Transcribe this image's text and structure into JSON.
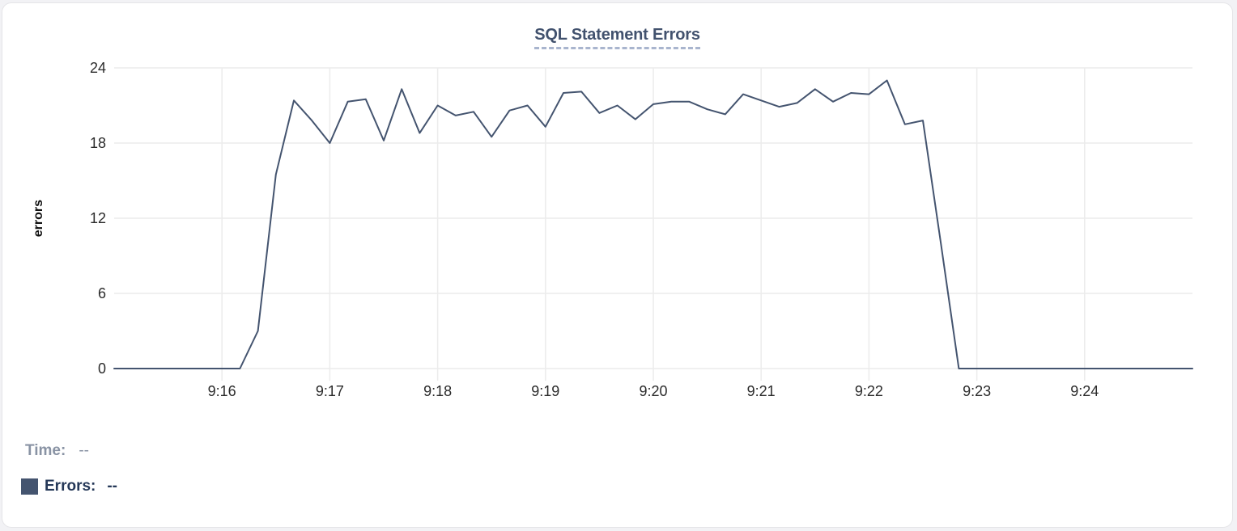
{
  "card": {
    "background": "#ffffff",
    "border_color": "#e5e5e8"
  },
  "legend": {
    "time_label": "Time:",
    "time_value": "--",
    "errors_label": "Errors:",
    "errors_value": "--",
    "swatch_color": "#44546F",
    "time_color": "#8993A4",
    "errors_color": "#253858"
  },
  "icons": {
    "errors_series_swatch": "square-swatch-icon"
  },
  "chart_data": {
    "type": "line",
    "title": "SQL Statement Errors",
    "xlabel": "",
    "ylabel": "errors",
    "ylim": [
      0,
      24
    ],
    "y_ticks": [
      0,
      6,
      12,
      18,
      24
    ],
    "x_domain": [
      "9:15:00",
      "9:25:00"
    ],
    "x_tick_labels": [
      "9:16",
      "9:17",
      "9:18",
      "9:19",
      "9:20",
      "9:21",
      "9:22",
      "9:23",
      "9:24"
    ],
    "x_tick_offsets_seconds": [
      60,
      120,
      180,
      240,
      300,
      360,
      420,
      480,
      540
    ],
    "grid": true,
    "legend_position": "bottom-left",
    "gridline_color": "#ececec",
    "tick_text_color": "#2b2b2b",
    "title_color": "#42526E",
    "title_underline_color": "#A9B5CE",
    "series": [
      {
        "name": "Errors",
        "color": "#44546F",
        "t_start": "9:15:00",
        "t_step_seconds": 10,
        "values": [
          0,
          0,
          0,
          0,
          0,
          0,
          0,
          0,
          3,
          15.5,
          21.4,
          19.8,
          18,
          21.3,
          21.5,
          18.2,
          22.3,
          18.8,
          21,
          20.2,
          20.5,
          18.5,
          20.6,
          21,
          19.3,
          22,
          22.1,
          20.4,
          21,
          19.9,
          21.1,
          21.3,
          21.3,
          20.7,
          20.3,
          21.9,
          21.4,
          20.9,
          21.2,
          22.3,
          21.3,
          22,
          21.9,
          23,
          19.5,
          19.8,
          10,
          0,
          0,
          0,
          0,
          0,
          0,
          0,
          0,
          0,
          0,
          0,
          0,
          0,
          0
        ]
      }
    ]
  }
}
